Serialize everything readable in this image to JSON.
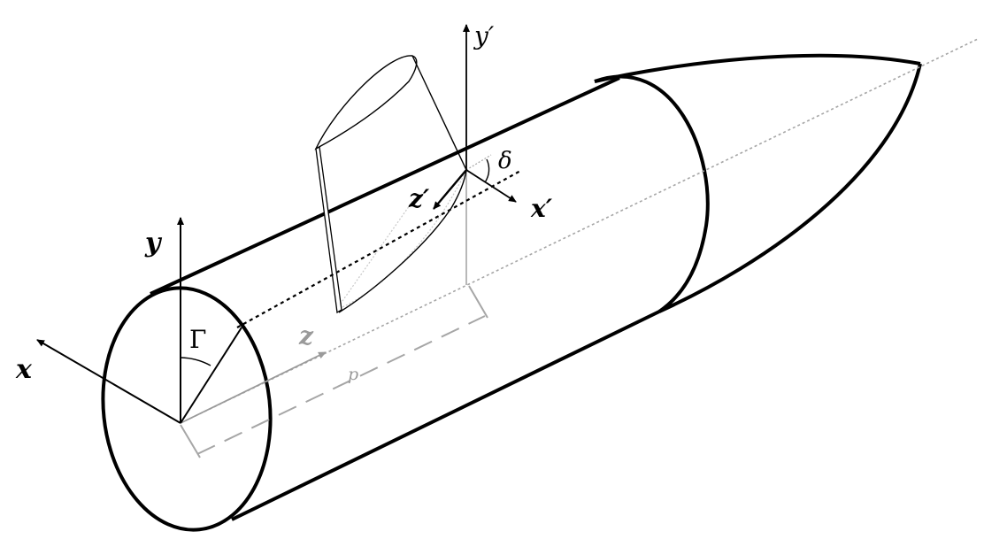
{
  "labels": {
    "x": "x",
    "y": "y",
    "z": "z",
    "x_prime": "x′",
    "y_prime": "y′",
    "z_prime": "z′",
    "gamma": "Γ",
    "delta": "δ",
    "p": "p"
  },
  "colors": {
    "ink": "#000000",
    "construction": "#a6a6a6",
    "fin_hidden": "#c8c8c8"
  }
}
